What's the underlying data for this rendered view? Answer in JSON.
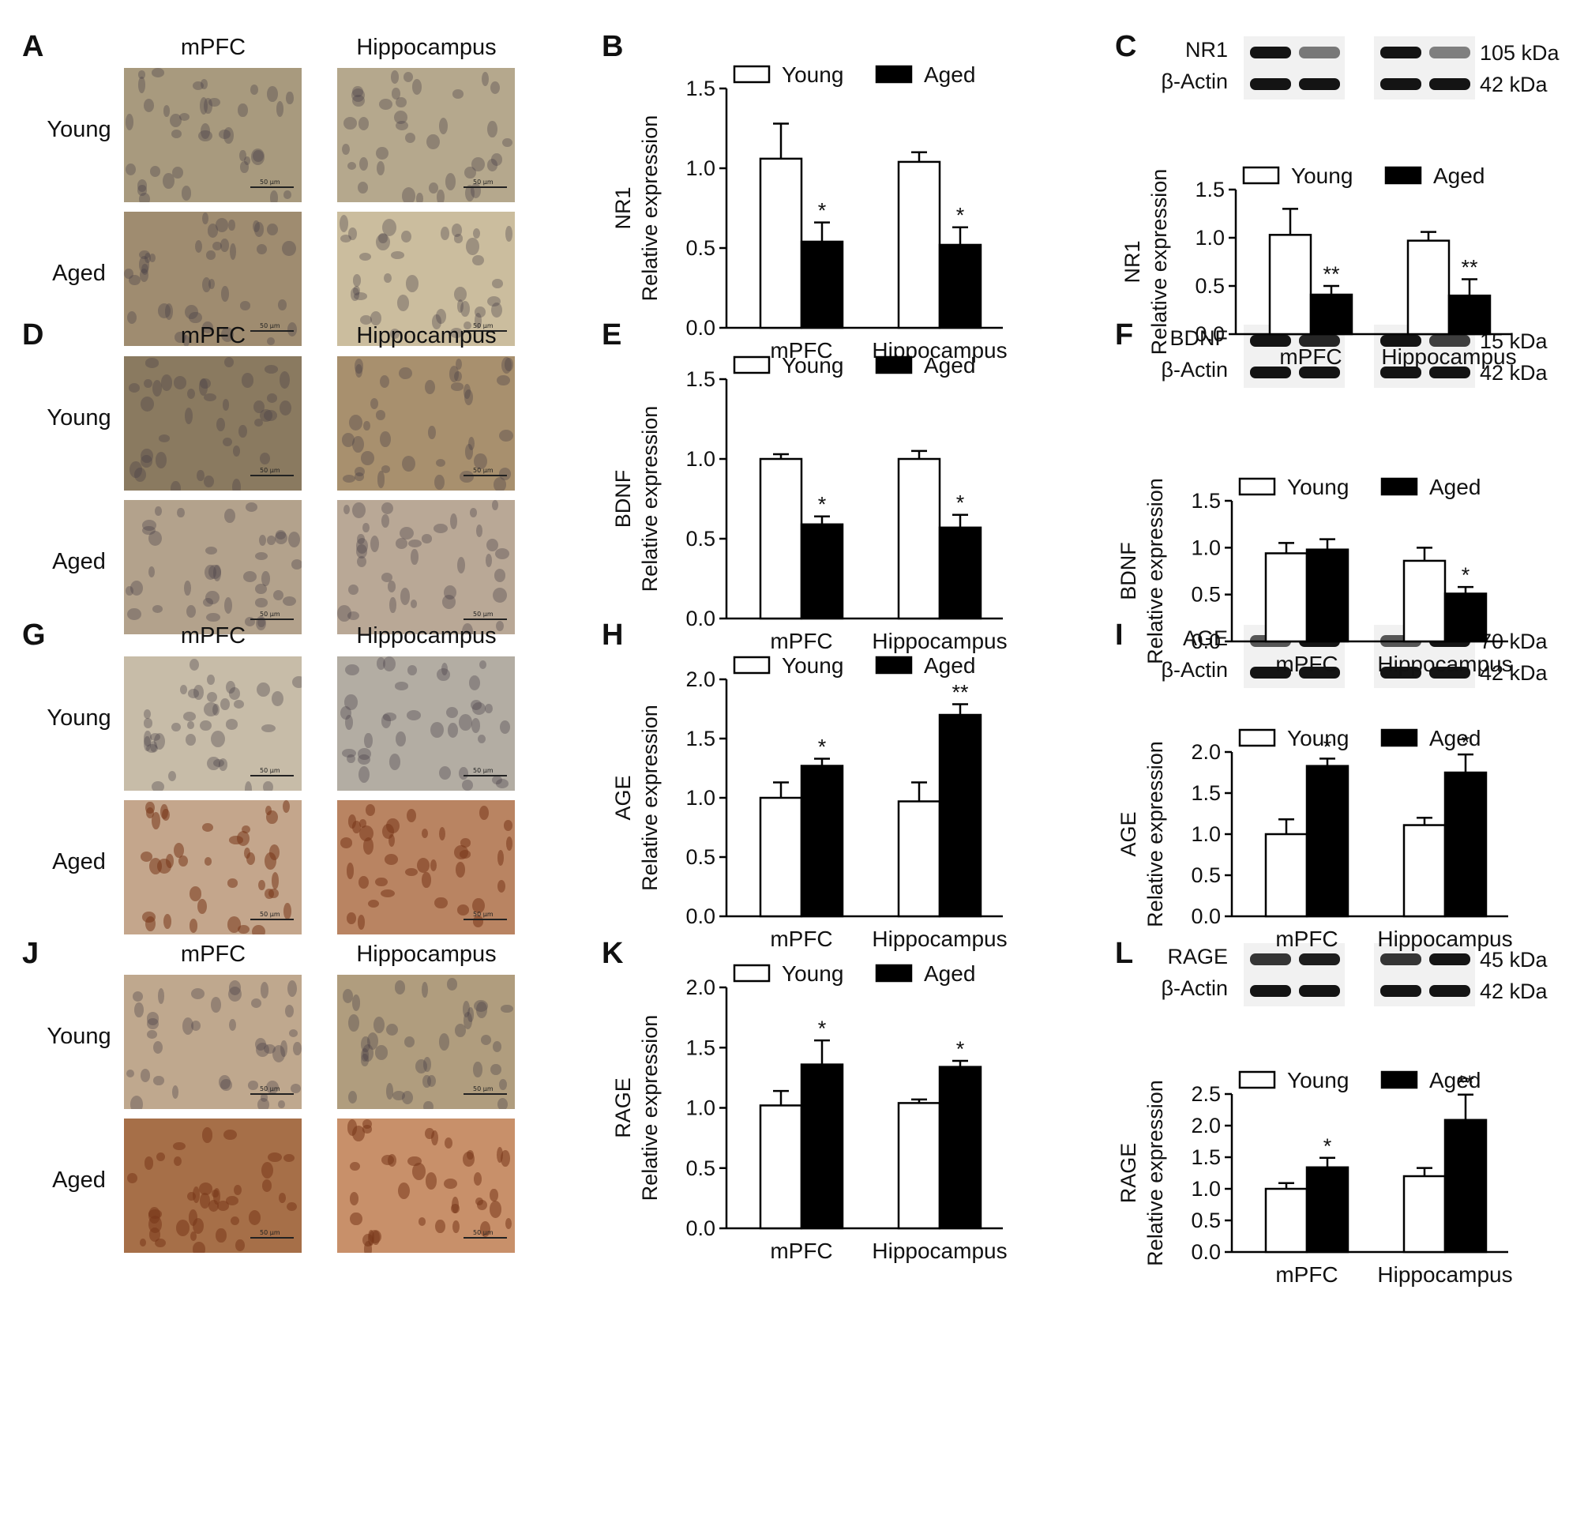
{
  "regions": [
    "mPFC",
    "Hippocampus"
  ],
  "groups": [
    "Young",
    "Aged"
  ],
  "scale_bar": "50 μm",
  "ylabel": "Relative expression",
  "loading_control": "β-Actin",
  "loading_control_kda": "42 kDa",
  "colors": {
    "young_fill": "#ffffff",
    "aged_fill": "#000000",
    "outline": "#000000"
  },
  "rows": [
    {
      "marker": "NR1",
      "letters": [
        "A",
        "B",
        "C"
      ],
      "kda": "105 kDa",
      "stain": {
        "young": [
          "#a89a7e",
          "#b5a88d"
        ],
        "aged": [
          "#9f8c70",
          "#cbbd9e"
        ]
      },
      "blot": {
        "target": [
          1.0,
          0.4,
          1.0,
          0.35
        ],
        "actin": [
          1.0,
          1.0,
          1.0,
          1.0
        ]
      }
    },
    {
      "marker": "BDNF",
      "letters": [
        "D",
        "E",
        "F"
      ],
      "kda": "15 kDa",
      "stain": {
        "young": [
          "#8a7a60",
          "#a8906e"
        ],
        "aged": [
          "#b3a28c",
          "#b9a896"
        ]
      },
      "blot": {
        "target": [
          1.0,
          0.9,
          1.0,
          0.75
        ],
        "actin": [
          1.0,
          1.0,
          1.0,
          1.0
        ]
      }
    },
    {
      "marker": "AGE",
      "letters": [
        "G",
        "H",
        "I"
      ],
      "kda": "70 kDa",
      "stain": {
        "young": [
          "#c7bca8",
          "#b3ada3"
        ],
        "aged": [
          "#c4a68c",
          "#b98462"
        ]
      },
      "blot": {
        "target": [
          0.6,
          1.0,
          0.6,
          1.0
        ],
        "actin": [
          1.0,
          1.0,
          1.0,
          1.0
        ]
      }
    },
    {
      "marker": "RAGE",
      "letters": [
        "J",
        "K",
        "L"
      ],
      "kda": "45 kDa",
      "stain": {
        "young": [
          "#bfa88e",
          "#b09d7e"
        ],
        "aged": [
          "#a66f48",
          "#c8906a"
        ]
      },
      "blot": {
        "target": [
          0.8,
          0.95,
          0.8,
          1.0
        ],
        "actin": [
          1.0,
          1.0,
          1.0,
          1.0
        ]
      }
    }
  ],
  "chart_data": [
    {
      "panel": "B",
      "type": "bar",
      "categories": [
        "mPFC",
        "Hippocampus"
      ],
      "ylabel": "Relative expression",
      "marker": "NR1",
      "ylim": [
        0,
        1.5
      ],
      "yticks": [
        0.0,
        0.5,
        1.0,
        1.5
      ],
      "yticklabels": [
        "0.0",
        "0.5",
        "1.0",
        "1.5"
      ],
      "series": [
        {
          "name": "Young",
          "values": [
            1.06,
            1.04
          ],
          "errors": [
            0.22,
            0.06
          ],
          "annotations": [
            "",
            ""
          ]
        },
        {
          "name": "Aged",
          "values": [
            0.54,
            0.52
          ],
          "errors": [
            0.12,
            0.11
          ],
          "annotations": [
            "*",
            "*"
          ]
        }
      ]
    },
    {
      "panel": "C",
      "type": "bar",
      "categories": [
        "mPFC",
        "Hippocampus"
      ],
      "ylabel": "Relative expression",
      "marker": "NR1",
      "ylim": [
        0,
        1.5
      ],
      "yticks": [
        0.0,
        0.5,
        1.0,
        1.5
      ],
      "yticklabels": [
        "0.0",
        "0.5",
        "1.0",
        "1.5"
      ],
      "series": [
        {
          "name": "Young",
          "values": [
            1.03,
            0.97
          ],
          "errors": [
            0.27,
            0.09
          ],
          "annotations": [
            "",
            ""
          ]
        },
        {
          "name": "Aged",
          "values": [
            0.41,
            0.4
          ],
          "errors": [
            0.09,
            0.17
          ],
          "annotations": [
            "**",
            "**"
          ]
        }
      ]
    },
    {
      "panel": "E",
      "type": "bar",
      "categories": [
        "mPFC",
        "Hippocampus"
      ],
      "ylabel": "Relative expression",
      "marker": "BDNF",
      "ylim": [
        0,
        1.5
      ],
      "yticks": [
        0.0,
        0.5,
        1.0,
        1.5
      ],
      "yticklabels": [
        "0.0",
        "0.5",
        "1.0",
        "1.5"
      ],
      "series": [
        {
          "name": "Young",
          "values": [
            1.0,
            1.0
          ],
          "errors": [
            0.03,
            0.05
          ],
          "annotations": [
            "",
            ""
          ]
        },
        {
          "name": "Aged",
          "values": [
            0.59,
            0.57
          ],
          "errors": [
            0.05,
            0.08
          ],
          "annotations": [
            "*",
            "*"
          ]
        }
      ]
    },
    {
      "panel": "F",
      "type": "bar",
      "categories": [
        "mPFC",
        "Hippocampus"
      ],
      "ylabel": "Relative expression",
      "marker": "BDNF",
      "ylim": [
        0,
        1.5
      ],
      "yticks": [
        0.0,
        0.5,
        1.0,
        1.5
      ],
      "yticklabels": [
        "0.0",
        "0.5",
        "1.0",
        "1.5"
      ],
      "series": [
        {
          "name": "Young",
          "values": [
            0.94,
            0.86
          ],
          "errors": [
            0.11,
            0.14
          ],
          "annotations": [
            "",
            ""
          ]
        },
        {
          "name": "Aged",
          "values": [
            0.98,
            0.51
          ],
          "errors": [
            0.11,
            0.07
          ],
          "annotations": [
            "",
            "*"
          ]
        }
      ]
    },
    {
      "panel": "H",
      "type": "bar",
      "categories": [
        "mPFC",
        "Hippocampus"
      ],
      "ylabel": "Relative expression",
      "marker": "AGE",
      "ylim": [
        0,
        2.0
      ],
      "yticks": [
        0.0,
        0.5,
        1.0,
        1.5,
        2.0
      ],
      "yticklabels": [
        "0.0",
        "0.5",
        "1.0",
        "1.5",
        "2.0"
      ],
      "series": [
        {
          "name": "Young",
          "values": [
            1.0,
            0.97
          ],
          "errors": [
            0.13,
            0.16
          ],
          "annotations": [
            "",
            ""
          ]
        },
        {
          "name": "Aged",
          "values": [
            1.27,
            1.7
          ],
          "errors": [
            0.06,
            0.09
          ],
          "annotations": [
            "*",
            "**"
          ]
        }
      ]
    },
    {
      "panel": "I",
      "type": "bar",
      "categories": [
        "mPFC",
        "Hippocampus"
      ],
      "ylabel": "Relative expression",
      "marker": "AGE",
      "ylim": [
        0,
        2.0
      ],
      "yticks": [
        0.0,
        0.5,
        1.0,
        1.5,
        2.0
      ],
      "yticklabels": [
        "0.0",
        "0.5",
        "1.0",
        "1.5",
        "2.0"
      ],
      "series": [
        {
          "name": "Young",
          "values": [
            1.0,
            1.11
          ],
          "errors": [
            0.18,
            0.09
          ],
          "annotations": [
            "",
            ""
          ]
        },
        {
          "name": "Aged",
          "values": [
            1.83,
            1.75
          ],
          "errors": [
            0.09,
            0.22
          ],
          "annotations": [
            "*",
            "*"
          ]
        }
      ]
    },
    {
      "panel": "K",
      "type": "bar",
      "categories": [
        "mPFC",
        "Hippocampus"
      ],
      "ylabel": "Relative expression",
      "marker": "RAGE",
      "ylim": [
        0,
        2.0
      ],
      "yticks": [
        0.0,
        0.5,
        1.0,
        1.5,
        2.0
      ],
      "yticklabels": [
        "0.0",
        "0.5",
        "1.0",
        "1.5",
        "2.0"
      ],
      "series": [
        {
          "name": "Young",
          "values": [
            1.02,
            1.04
          ],
          "errors": [
            0.12,
            0.03
          ],
          "annotations": [
            "",
            ""
          ]
        },
        {
          "name": "Aged",
          "values": [
            1.36,
            1.34
          ],
          "errors": [
            0.2,
            0.05
          ],
          "annotations": [
            "*",
            "*"
          ]
        }
      ]
    },
    {
      "panel": "L",
      "type": "bar",
      "categories": [
        "mPFC",
        "Hippocampus"
      ],
      "ylabel": "Relative expression",
      "marker": "RAGE",
      "ylim": [
        0,
        2.5
      ],
      "yticks": [
        0.0,
        0.5,
        1.0,
        1.5,
        2.0,
        2.5
      ],
      "yticklabels": [
        "0.0",
        "0.5",
        "1.0",
        "1.5",
        "2.0",
        "2.5"
      ],
      "series": [
        {
          "name": "Young",
          "values": [
            1.0,
            1.2
          ],
          "errors": [
            0.09,
            0.13
          ],
          "annotations": [
            "",
            ""
          ]
        },
        {
          "name": "Aged",
          "values": [
            1.34,
            2.09
          ],
          "errors": [
            0.15,
            0.4
          ],
          "annotations": [
            "*",
            "**"
          ]
        }
      ]
    }
  ]
}
